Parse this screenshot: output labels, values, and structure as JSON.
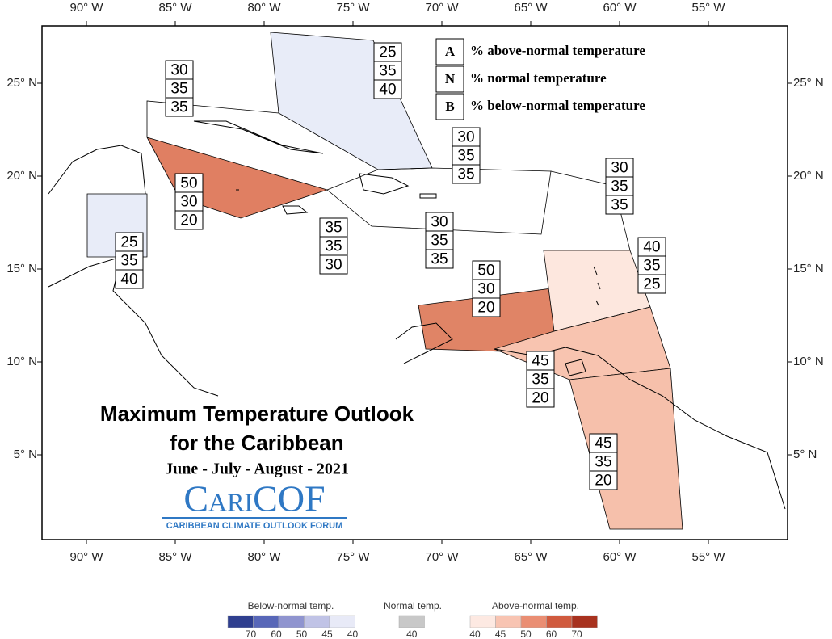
{
  "title": "Maximum Temperature Outlook",
  "title_line2": "for the Caribbean",
  "subtitle": "June - July - August - 2021",
  "logo": "CariCOF",
  "logo_tagline": "CARIBBEAN CLIMATE OUTLOOK FORUM",
  "lon_labels": [
    "90° W",
    "85° W",
    "80° W",
    "75° W",
    "70° W",
    "65° W",
    "60° W",
    "55° W"
  ],
  "lat_labels": [
    "25° N",
    "20° N",
    "15° N",
    "10° N",
    "5° N"
  ],
  "key": [
    {
      "letter": "A",
      "text": "% above-normal temperature"
    },
    {
      "letter": "N",
      "text": "% normal temperature"
    },
    {
      "letter": "B",
      "text": "% below-normal temperature"
    }
  ],
  "regions": [
    [
      "30",
      "35",
      "35"
    ],
    [
      "25",
      "35",
      "40"
    ],
    [
      "30",
      "35",
      "35"
    ],
    [
      "30",
      "35",
      "35"
    ],
    [
      "50",
      "30",
      "20"
    ],
    [
      "35",
      "35",
      "30"
    ],
    [
      "30",
      "35",
      "35"
    ],
    [
      "25",
      "35",
      "40"
    ],
    [
      "40",
      "35",
      "25"
    ],
    [
      "50",
      "30",
      "20"
    ],
    [
      "45",
      "35",
      "20"
    ],
    [
      "45",
      "35",
      "20"
    ]
  ],
  "legend": [
    {
      "title": "Below-normal temp.",
      "colors": [
        "#2f3f8f",
        "#5867b8",
        "#8f94cf",
        "#c0c3e6",
        "#e8eaf7"
      ],
      "labels": [
        "70",
        "60",
        "50",
        "45",
        "40"
      ]
    },
    {
      "title": "Normal temp.",
      "colors": [
        "#c8c8c8"
      ],
      "labels": [
        "40"
      ]
    },
    {
      "title": "Above-normal temp.",
      "colors": [
        "#fde9e2",
        "#f8c4b2",
        "#ea8e73",
        "#d05a3e",
        "#a8321f"
      ],
      "labels": [
        "40",
        "45",
        "50",
        "60",
        "70"
      ]
    }
  ]
}
